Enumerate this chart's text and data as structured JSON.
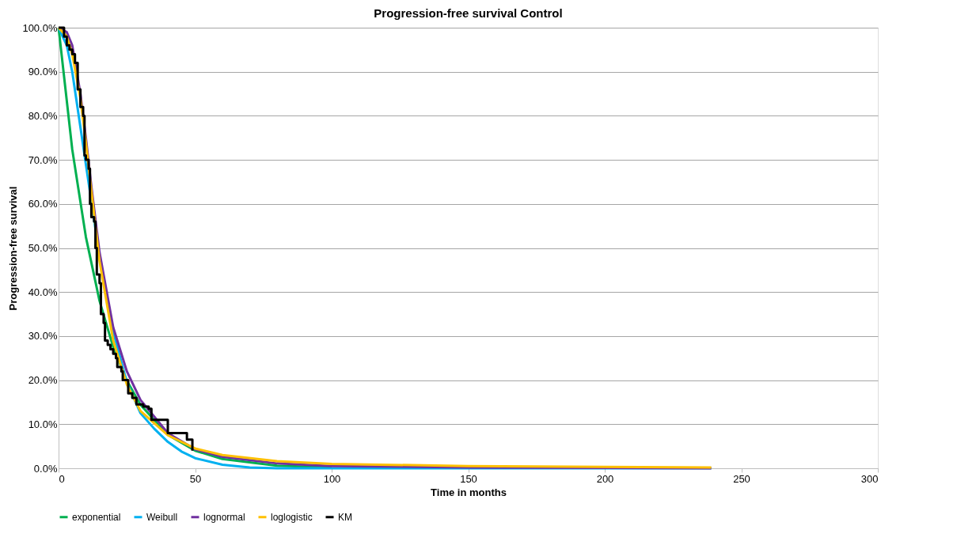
{
  "chart_data": {
    "type": "line",
    "title": "Progression-free survival Control",
    "xlabel": "Time in months",
    "ylabel": "Progression-free survival",
    "xlim": [
      0,
      300
    ],
    "xticks": [
      0,
      50,
      100,
      150,
      200,
      250,
      300
    ],
    "ylim": [
      0,
      100
    ],
    "yticks": [
      {
        "value": 0,
        "label": "0.0%"
      },
      {
        "value": 10,
        "label": "10.0%"
      },
      {
        "value": 20,
        "label": "20.0%"
      },
      {
        "value": 30,
        "label": "30.0%"
      },
      {
        "value": 40,
        "label": "40.0%"
      },
      {
        "value": 50,
        "label": "50.0%"
      },
      {
        "value": 60,
        "label": "60.0%"
      },
      {
        "value": 70,
        "label": "70.0%"
      },
      {
        "value": 80,
        "label": "80.0%"
      },
      {
        "value": 90,
        "label": "90.0%"
      },
      {
        "value": 100,
        "label": "100.0%"
      }
    ],
    "grid": "y",
    "legend": "bottom",
    "marker": "none",
    "line_style": "solid",
    "series": [
      {
        "name": "exponential",
        "color": "#00b050",
        "x": [
          0,
          5,
          10,
          15,
          20,
          25,
          30,
          40,
          50,
          60,
          80,
          100
        ],
        "values": [
          100,
          72.4,
          52.5,
          38,
          27.5,
          19.9,
          14.4,
          7.6,
          4.0,
          2.1,
          0.6,
          0.2
        ]
      },
      {
        "name": "Weibull",
        "color": "#00b0f0",
        "x": [
          0,
          3,
          5,
          10,
          15,
          20,
          25,
          30,
          35,
          40,
          45,
          50,
          60,
          70,
          80,
          100,
          150,
          200,
          239
        ],
        "values": [
          100,
          96,
          90,
          69,
          48,
          31,
          19.5,
          12.5,
          9,
          6,
          3.8,
          2.3,
          0.8,
          0.2,
          0,
          0,
          0,
          0,
          0
        ]
      },
      {
        "name": "lognormal",
        "color": "#7030a0",
        "x": [
          0,
          3,
          5,
          8,
          10,
          12,
          15,
          20,
          25,
          30,
          40,
          50,
          60,
          80,
          100,
          150,
          200,
          239
        ],
        "values": [
          100,
          99,
          96,
          85,
          75,
          64,
          49,
          32,
          22,
          15.5,
          8,
          4.3,
          2.6,
          1.1,
          0.5,
          0.2,
          0.1,
          0
        ]
      },
      {
        "name": "loglogistic",
        "color": "#ffc000",
        "x": [
          0,
          3,
          5,
          8,
          10,
          12,
          15,
          20,
          25,
          30,
          40,
          50,
          60,
          80,
          100,
          150,
          200,
          239
        ],
        "values": [
          100,
          98,
          94,
          84,
          74,
          63,
          47,
          29,
          19,
          13,
          7.5,
          4.5,
          3.0,
          1.6,
          1.0,
          0.5,
          0.3,
          0.2
        ]
      },
      {
        "name": "KM",
        "color": "#000000",
        "type": "step",
        "x": [
          0,
          2,
          3,
          4,
          5,
          6,
          7,
          8,
          9,
          9.5,
          10,
          11,
          11.5,
          12,
          13,
          13.5,
          14,
          15,
          15.5,
          16.5,
          17,
          18,
          19,
          20,
          21,
          21.5,
          23,
          23.5,
          25.5,
          27,
          28.5,
          31,
          33,
          34,
          39,
          40,
          46,
          47,
          49
        ],
        "values": [
          100,
          98,
          96,
          95,
          94,
          92,
          86,
          82,
          80,
          71,
          70,
          68,
          60,
          57,
          56,
          50,
          44,
          42,
          35,
          33,
          29,
          28,
          27,
          26,
          25,
          23,
          22,
          20,
          17,
          16,
          14.5,
          14,
          13.5,
          11,
          11,
          8,
          8,
          6.5,
          4
        ]
      }
    ]
  }
}
